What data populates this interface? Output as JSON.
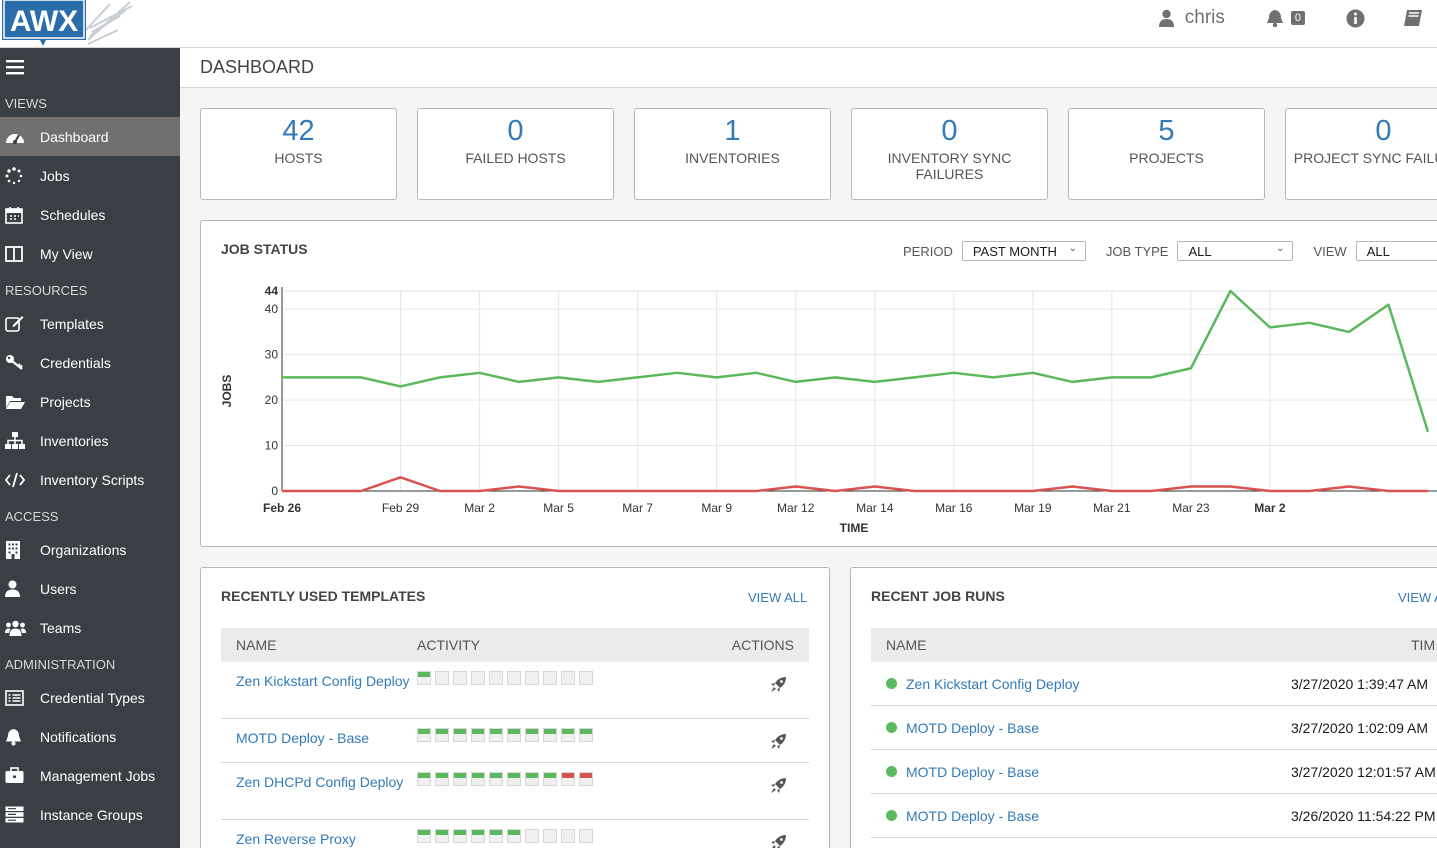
{
  "header": {
    "logo_text": "AWX",
    "user": "chris",
    "notification_count": "0"
  },
  "sidebar": {
    "sections": [
      {
        "title": "VIEWS",
        "items": [
          {
            "label": "Dashboard",
            "icon": "dashboard-icon",
            "active": true
          },
          {
            "label": "Jobs",
            "icon": "spinner-icon"
          },
          {
            "label": "Schedules",
            "icon": "calendar-icon"
          },
          {
            "label": "My View",
            "icon": "columns-icon"
          }
        ]
      },
      {
        "title": "RESOURCES",
        "items": [
          {
            "label": "Templates",
            "icon": "pencil-square-icon"
          },
          {
            "label": "Credentials",
            "icon": "key-icon"
          },
          {
            "label": "Projects",
            "icon": "folder-open-icon"
          },
          {
            "label": "Inventories",
            "icon": "sitemap-icon"
          },
          {
            "label": "Inventory Scripts",
            "icon": "code-icon"
          }
        ]
      },
      {
        "title": "ACCESS",
        "items": [
          {
            "label": "Organizations",
            "icon": "building-icon"
          },
          {
            "label": "Users",
            "icon": "user-icon"
          },
          {
            "label": "Teams",
            "icon": "users-icon"
          }
        ]
      },
      {
        "title": "ADMINISTRATION",
        "items": [
          {
            "label": "Credential Types",
            "icon": "list-alt-icon"
          },
          {
            "label": "Notifications",
            "icon": "bell-icon"
          },
          {
            "label": "Management Jobs",
            "icon": "briefcase-icon"
          },
          {
            "label": "Instance Groups",
            "icon": "server-icon"
          }
        ]
      }
    ]
  },
  "page": {
    "title": "DASHBOARD"
  },
  "counts": [
    {
      "value": "42",
      "label": "HOSTS"
    },
    {
      "value": "0",
      "label": "FAILED HOSTS"
    },
    {
      "value": "1",
      "label": "INVENTORIES"
    },
    {
      "value": "0",
      "label": "INVENTORY SYNC FAILURES"
    },
    {
      "value": "5",
      "label": "PROJECTS"
    },
    {
      "value": "0",
      "label": "PROJECT SYNC FAILURES"
    }
  ],
  "job_status": {
    "title": "JOB STATUS",
    "period_label": "PERIOD",
    "period_value": "PAST MONTH",
    "job_type_label": "JOB TYPE",
    "job_type_value": "ALL",
    "view_label": "VIEW",
    "view_value": "ALL"
  },
  "chart_data": {
    "type": "line",
    "xlabel": "TIME",
    "ylabel": "JOBS",
    "ylim": [
      0,
      44
    ],
    "yticks": [
      0,
      10,
      20,
      30,
      40,
      44
    ],
    "x_tick_labels": [
      "Feb 26",
      "Feb 29",
      "Mar 2",
      "Mar 5",
      "Mar 7",
      "Mar 9",
      "Mar 12",
      "Mar 14",
      "Mar 16",
      "Mar 19",
      "Mar 21",
      "Mar 23",
      "Mar 2"
    ],
    "x_tick_index": [
      0,
      3,
      5,
      7,
      9,
      11,
      13,
      15,
      17,
      19,
      21,
      23,
      25
    ],
    "series": [
      {
        "color": "#5cb85c",
        "values": [
          25,
          25,
          25,
          23,
          25,
          26,
          24,
          25,
          24,
          25,
          26,
          25,
          26,
          24,
          25,
          24,
          25,
          26,
          25,
          26,
          24,
          25,
          25,
          27,
          44,
          36,
          37,
          35,
          41,
          13
        ]
      },
      {
        "color": "#d9534f",
        "values": [
          0,
          0,
          0,
          3,
          0,
          0,
          1,
          0,
          0,
          0,
          0,
          0,
          0,
          1,
          0,
          1,
          0,
          0,
          0,
          0,
          1,
          0,
          0,
          1,
          1,
          0,
          0,
          1,
          0,
          0
        ]
      }
    ],
    "grid": true
  },
  "templates": {
    "title": "RECENTLY USED TEMPLATES",
    "view_all": "VIEW ALL",
    "columns": [
      "NAME",
      "ACTIVITY",
      "ACTIONS"
    ],
    "rows": [
      {
        "name": "Zen Kickstart Config Deploy",
        "activity": [
          "ok",
          "none",
          "none",
          "none",
          "none",
          "none",
          "none",
          "none",
          "none",
          "none"
        ]
      },
      {
        "name": "MOTD Deploy - Base",
        "activity": [
          "ok",
          "ok",
          "ok",
          "ok",
          "ok",
          "ok",
          "ok",
          "ok",
          "ok",
          "ok"
        ]
      },
      {
        "name": "Zen DHCPd Config Deploy",
        "activity": [
          "ok",
          "ok",
          "ok",
          "ok",
          "ok",
          "ok",
          "ok",
          "ok",
          "fail",
          "fail"
        ]
      },
      {
        "name": "Zen Reverse Proxy",
        "activity": [
          "ok",
          "ok",
          "ok",
          "ok",
          "ok",
          "ok",
          "none",
          "none",
          "none",
          "none"
        ]
      }
    ],
    "action_icon": "rocket-icon"
  },
  "job_runs": {
    "title": "RECENT JOB RUNS",
    "view_all": "VIEW A",
    "columns": [
      "NAME",
      "TIM"
    ],
    "rows": [
      {
        "name": "Zen Kickstart Config Deploy",
        "time": "3/27/2020 1:39:47 AM",
        "status": "success"
      },
      {
        "name": "MOTD Deploy - Base",
        "time": "3/27/2020 1:02:09 AM",
        "status": "success"
      },
      {
        "name": "MOTD Deploy - Base",
        "time": "3/27/2020 12:01:57 AM",
        "status": "success"
      },
      {
        "name": "MOTD Deploy - Base",
        "time": "3/26/2020 11:54:22 PM",
        "status": "success"
      }
    ]
  }
}
